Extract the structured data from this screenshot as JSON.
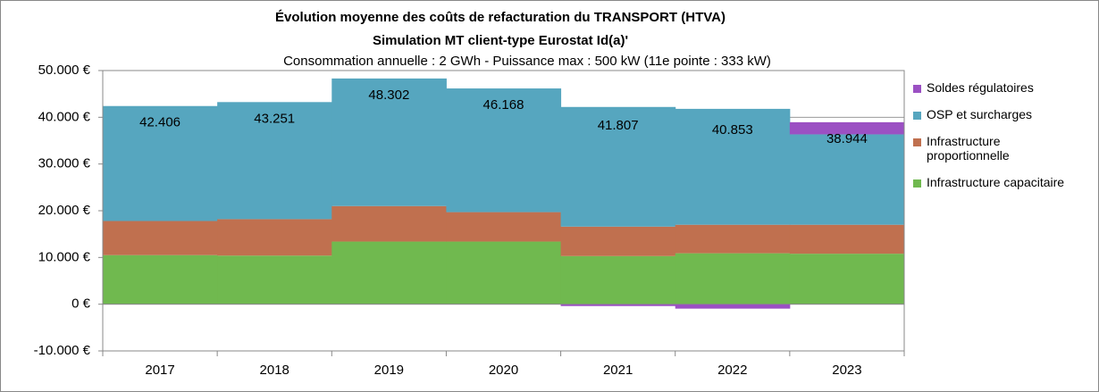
{
  "chart_data": {
    "type": "stacked-step-area",
    "title": "Évolution moyenne des coûts de refacturation du TRANSPORT (HTVA)",
    "subtitle": "Simulation MT client-type Eurostat Id(a)'",
    "note": "Consommation annuelle : 2 GWh - Puissance max : 500 kW (11e pointe : 333 kW)",
    "categories": [
      "2017",
      "2018",
      "2019",
      "2020",
      "2021",
      "2022",
      "2023"
    ],
    "series": [
      {
        "name": "Infrastructure capacitaire",
        "color": "#70b94f",
        "values": [
          10500,
          10400,
          13400,
          13400,
          10300,
          10900,
          10800
        ]
      },
      {
        "name": "Infrastructure proportionnelle",
        "color": "#c0704f",
        "values": [
          7300,
          7800,
          7600,
          6300,
          6300,
          6100,
          6200
        ]
      },
      {
        "name": "OSP et surcharges",
        "color": "#56a6bf",
        "values": [
          24606,
          25051,
          27302,
          26468,
          25607,
          24803,
          19344
        ]
      },
      {
        "name": "Soldes régulatoires",
        "color": "#9b50c3",
        "values": [
          0,
          0,
          0,
          0,
          -400,
          -950,
          2600
        ]
      }
    ],
    "totals": {
      "values": [
        42406,
        43251,
        48302,
        46168,
        41807,
        40853,
        38944
      ],
      "value_labels": [
        "42.406",
        "43.251",
        "48.302",
        "46.168",
        "41.807",
        "40.853",
        "38.944"
      ]
    },
    "ylim": [
      -10000,
      50000
    ],
    "yticks": [
      {
        "value": -10000,
        "label": "-10.000 €"
      },
      {
        "value": 0,
        "label": "0 €"
      },
      {
        "value": 10000,
        "label": "10.000 €"
      },
      {
        "value": 20000,
        "label": "20.000 €"
      },
      {
        "value": 30000,
        "label": "30.000 €"
      },
      {
        "value": 40000,
        "label": "40.000 €"
      },
      {
        "value": 50000,
        "label": "50.000 €"
      }
    ],
    "grid": true,
    "legend": "right"
  }
}
